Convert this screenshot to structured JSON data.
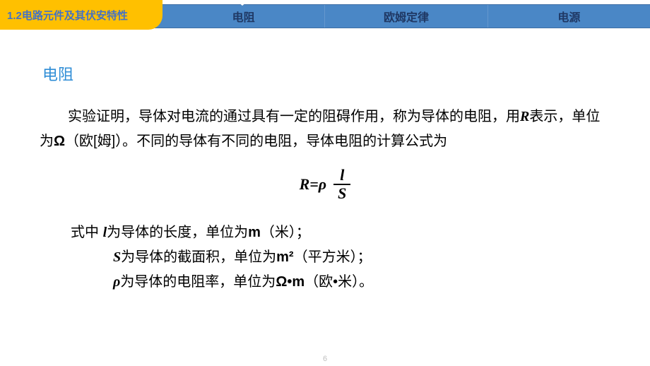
{
  "colors": {
    "topbar_bg": "#4a87c6",
    "badge_bg": "#ffc000",
    "badge_text": "#4472c4",
    "nav_text": "#1f3864",
    "section_title": "#2f8dd6",
    "body_text": "#000000",
    "page_bg": "#ffffff",
    "page_num": "#bfbfbf"
  },
  "header": {
    "badge": "1.2电路元件及其伏安特性",
    "tabs": [
      "电阻",
      "欧姆定律",
      "电源"
    ],
    "active_tab_index": 0
  },
  "section": {
    "title": "电阻",
    "para_parts": {
      "p1a": "实验证明，导体对电流的通过具有一定的阻碍作用，称为导体的电阻，用",
      "p1_R": "R",
      "p1b": "表示，单位为",
      "p1_ohm": "Ω",
      "p1c": "（欧[姆]）。不同的导体有不同的电阻，导体电阻的计算公式为"
    },
    "formula": {
      "lhs": "R=ρ",
      "num": "l",
      "den": "S"
    },
    "defs": {
      "l1a": "式中 ",
      "l1_sym": "l",
      "l1b": "为导体的长度，单位为",
      "l1_unit": "m",
      "l1c": "（米）；",
      "l2_sym": "S",
      "l2a": "为导体的截面积，单位为",
      "l2_unit": "m²",
      "l2b": "（平方米）；",
      "l3_sym": "ρ",
      "l3a": "为导体的电阻率，单位为",
      "l3_unit": "Ω•m",
      "l3b": "（欧•米）。"
    }
  },
  "page_number": "6"
}
